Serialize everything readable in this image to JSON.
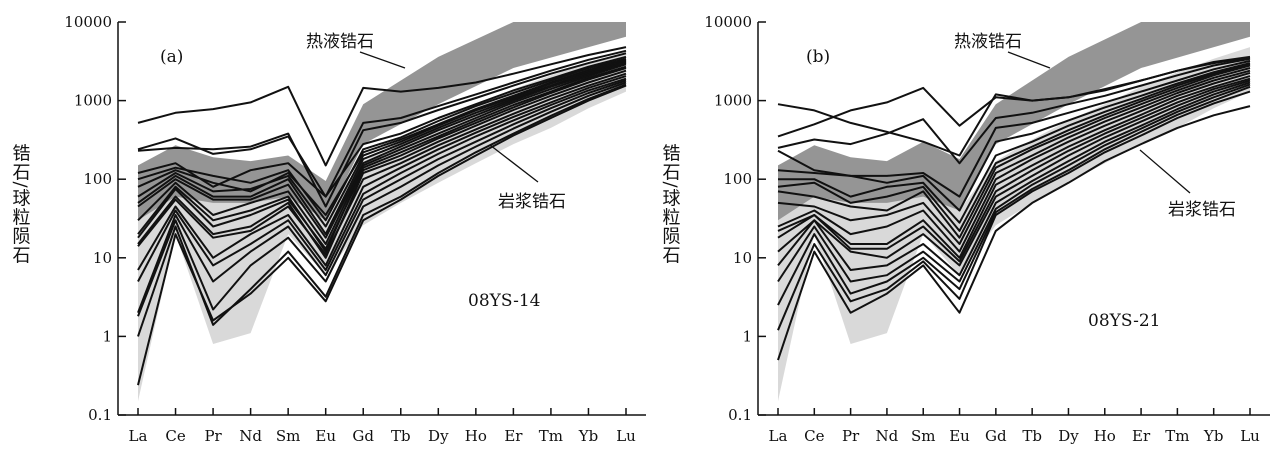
{
  "colors": {
    "hydrothermal_field": "#959595",
    "magmatic_field": "#d9d9d9",
    "line": "#111111"
  },
  "chart_data": [
    {
      "type": "line",
      "panel_label": "(a)",
      "sample": "08YS-14",
      "ylabel": "锆石/球粒陨石",
      "yscale": "log",
      "ylim": [
        0.1,
        10000
      ],
      "yticks": [
        "0.1",
        "1",
        "10",
        "100",
        "1000",
        "10000"
      ],
      "categories": [
        "La",
        "Ce",
        "Pr",
        "Nd",
        "Sm",
        "Eu",
        "Gd",
        "Tb",
        "Dy",
        "Ho",
        "Er",
        "Tm",
        "Yb",
        "Lu"
      ],
      "annotations": [
        {
          "text": "热液锆石"
        },
        {
          "text": "岩浆锆石"
        }
      ],
      "hydrothermal_field": {
        "upper": [
          {
            "i": 0,
            "v": 150
          },
          {
            "i": 1,
            "v": 270
          },
          {
            "i": 2,
            "v": 190
          },
          {
            "i": 3,
            "v": 170
          },
          {
            "i": 4,
            "v": 200
          },
          {
            "i": 5,
            "v": 95
          },
          {
            "i": 6,
            "v": 900
          },
          {
            "i": 8,
            "v": 3600
          },
          {
            "i": 10,
            "v": 10000
          },
          {
            "i": 13,
            "v": 10000
          }
        ],
        "lower": [
          {
            "i": 13,
            "v": 6500
          },
          {
            "i": 10,
            "v": 2600
          },
          {
            "i": 8,
            "v": 900
          },
          {
            "i": 6,
            "v": 280
          },
          {
            "i": 5,
            "v": 30
          },
          {
            "i": 4,
            "v": 60
          },
          {
            "i": 3,
            "v": 50
          },
          {
            "i": 2,
            "v": 50
          },
          {
            "i": 1,
            "v": 60
          },
          {
            "i": 0,
            "v": 30
          }
        ]
      },
      "magmatic_field": {
        "upper": [
          {
            "i": 0,
            "v": 40
          },
          {
            "i": 1,
            "v": 150
          },
          {
            "i": 2,
            "v": 90
          },
          {
            "i": 3,
            "v": 120
          },
          {
            "i": 4,
            "v": 160
          },
          {
            "i": 5,
            "v": 40
          },
          {
            "i": 6,
            "v": 170
          },
          {
            "i": 7,
            "v": 300
          },
          {
            "i": 8,
            "v": 520
          },
          {
            "i": 9,
            "v": 850
          },
          {
            "i": 10,
            "v": 1400
          },
          {
            "i": 11,
            "v": 2100
          },
          {
            "i": 12,
            "v": 3000
          },
          {
            "i": 13,
            "v": 4200
          }
        ],
        "lower": [
          {
            "i": 13,
            "v": 1300
          },
          {
            "i": 12,
            "v": 800
          },
          {
            "i": 11,
            "v": 450
          },
          {
            "i": 10,
            "v": 280
          },
          {
            "i": 9,
            "v": 160
          },
          {
            "i": 8,
            "v": 90
          },
          {
            "i": 7,
            "v": 50
          },
          {
            "i": 6,
            "v": 26
          },
          {
            "i": 5,
            "v": 6
          },
          {
            "i": 4,
            "v": 20
          },
          {
            "i": 3,
            "v": 1.1
          },
          {
            "i": 2,
            "v": 0.8
          },
          {
            "i": 1,
            "v": 20
          },
          {
            "i": 0,
            "v": 0.15
          }
        ]
      },
      "series": [
        {
          "values": [
            520,
            700,
            780,
            950,
            1500,
            150,
            1450,
            1300,
            1450,
            1700,
            2200,
            2900,
            3800,
            4800
          ]
        },
        {
          "values": [
            240,
            330,
            210,
            240,
            350,
            60,
            520,
            600,
            850,
            1200,
            1700,
            2400,
            3300,
            4300
          ]
        },
        {
          "values": [
            230,
            250,
            240,
            260,
            380,
            45,
            420,
            520,
            760,
            1080,
            1550,
            2200,
            3000,
            4000
          ]
        },
        {
          "values": [
            120,
            160,
            80,
            130,
            160,
            60,
            280,
            380,
            600,
            900,
            1350,
            1900,
            2700,
            3600
          ]
        },
        {
          "values": [
            100,
            140,
            110,
            90,
            130,
            30,
            240,
            340,
            550,
            850,
            1250,
            1800,
            2600,
            3400
          ]
        },
        {
          "values": [
            80,
            130,
            90,
            70,
            120,
            35,
            220,
            320,
            500,
            780,
            1150,
            1700,
            2450,
            3300
          ]
        },
        {
          "values": [
            60,
            120,
            70,
            75,
            110,
            25,
            200,
            300,
            480,
            750,
            1100,
            1650,
            2350,
            3200
          ]
        },
        {
          "values": [
            50,
            110,
            60,
            60,
            100,
            20,
            180,
            280,
            450,
            700,
            1050,
            1550,
            2250,
            3100
          ]
        },
        {
          "values": [
            45,
            100,
            55,
            55,
            85,
            18,
            160,
            260,
            420,
            650,
            1000,
            1500,
            2150,
            3000
          ]
        },
        {
          "values": [
            30,
            90,
            35,
            50,
            70,
            15,
            150,
            240,
            380,
            600,
            950,
            1400,
            2050,
            2900
          ]
        },
        {
          "values": [
            20,
            80,
            30,
            40,
            60,
            12,
            140,
            220,
            350,
            560,
            880,
            1300,
            1950,
            2700
          ]
        },
        {
          "values": [
            18,
            75,
            25,
            35,
            55,
            13,
            130,
            200,
            330,
            520,
            820,
            1250,
            1850,
            2600
          ]
        },
        {
          "values": [
            15,
            60,
            20,
            25,
            50,
            10,
            120,
            180,
            300,
            480,
            760,
            1150,
            1700,
            2400
          ]
        },
        {
          "values": [
            14,
            55,
            18,
            22,
            45,
            11,
            100,
            160,
            270,
            430,
            680,
            1050,
            1550,
            2200
          ]
        },
        {
          "values": [
            7,
            45,
            10,
            20,
            35,
            8,
            80,
            140,
            240,
            390,
            620,
            950,
            1450,
            2050
          ]
        },
        {
          "values": [
            5,
            40,
            8,
            15,
            30,
            7,
            65,
            120,
            210,
            350,
            560,
            880,
            1350,
            1900
          ]
        },
        {
          "values": [
            2,
            35,
            5,
            12,
            25,
            6,
            55,
            100,
            180,
            300,
            500,
            800,
            1250,
            1800
          ]
        },
        {
          "values": [
            1.8,
            30,
            2.2,
            8,
            18,
            5,
            45,
            80,
            150,
            260,
            440,
            720,
            1150,
            1700
          ]
        },
        {
          "values": [
            1.0,
            25,
            1.4,
            4,
            12,
            3.2,
            35,
            60,
            120,
            220,
            380,
            640,
            1050,
            1600
          ]
        },
        {
          "values": [
            0.24,
            20,
            1.6,
            3.5,
            10,
            2.8,
            30,
            55,
            110,
            200,
            360,
            600,
            1000,
            1550
          ]
        }
      ]
    },
    {
      "type": "line",
      "panel_label": "(b)",
      "sample": "08YS-21",
      "ylabel": "锆石/球粒陨石",
      "yscale": "log",
      "ylim": [
        0.1,
        10000
      ],
      "yticks": [
        "0.1",
        "1",
        "10",
        "100",
        "1000",
        "10000"
      ],
      "categories": [
        "La",
        "Ce",
        "Pr",
        "Nd",
        "Sm",
        "Eu",
        "Gd",
        "Tb",
        "Dy",
        "Ho",
        "Er",
        "Tm",
        "Yb",
        "Lu"
      ],
      "annotations": [
        {
          "text": "热液锆石"
        },
        {
          "text": "岩浆锆石"
        }
      ],
      "hydrothermal_field": {
        "upper": [
          {
            "i": 0,
            "v": 150
          },
          {
            "i": 1,
            "v": 270
          },
          {
            "i": 2,
            "v": 190
          },
          {
            "i": 3,
            "v": 170
          },
          {
            "i": 4,
            "v": 300
          },
          {
            "i": 5,
            "v": 180
          },
          {
            "i": 6,
            "v": 900
          },
          {
            "i": 8,
            "v": 3600
          },
          {
            "i": 10,
            "v": 10000
          },
          {
            "i": 13,
            "v": 10000
          }
        ],
        "lower": [
          {
            "i": 13,
            "v": 6500
          },
          {
            "i": 10,
            "v": 2600
          },
          {
            "i": 8,
            "v": 900
          },
          {
            "i": 6,
            "v": 280
          },
          {
            "i": 5,
            "v": 40
          },
          {
            "i": 4,
            "v": 60
          },
          {
            "i": 3,
            "v": 50
          },
          {
            "i": 2,
            "v": 50
          },
          {
            "i": 1,
            "v": 60
          },
          {
            "i": 0,
            "v": 30
          }
        ]
      },
      "magmatic_field": {
        "upper": [
          {
            "i": 0,
            "v": 40
          },
          {
            "i": 1,
            "v": 150
          },
          {
            "i": 2,
            "v": 90
          },
          {
            "i": 3,
            "v": 120
          },
          {
            "i": 4,
            "v": 160
          },
          {
            "i": 5,
            "v": 40
          },
          {
            "i": 6,
            "v": 170
          },
          {
            "i": 7,
            "v": 320
          },
          {
            "i": 8,
            "v": 560
          },
          {
            "i": 9,
            "v": 900
          },
          {
            "i": 10,
            "v": 1500
          },
          {
            "i": 11,
            "v": 2300
          },
          {
            "i": 12,
            "v": 3400
          },
          {
            "i": 13,
            "v": 4800
          }
        ],
        "lower": [
          {
            "i": 13,
            "v": 1300
          },
          {
            "i": 12,
            "v": 800
          },
          {
            "i": 11,
            "v": 450
          },
          {
            "i": 10,
            "v": 280
          },
          {
            "i": 9,
            "v": 160
          },
          {
            "i": 8,
            "v": 90
          },
          {
            "i": 7,
            "v": 50
          },
          {
            "i": 6,
            "v": 26
          },
          {
            "i": 5,
            "v": 6
          },
          {
            "i": 4,
            "v": 20
          },
          {
            "i": 3,
            "v": 1.1
          },
          {
            "i": 2,
            "v": 0.8
          },
          {
            "i": 1,
            "v": 20
          },
          {
            "i": 0,
            "v": 0.15
          }
        ]
      },
      "series": [
        {
          "values": [
            900,
            750,
            520,
            400,
            300,
            200,
            1200,
            1000,
            1100,
            1400,
            1800,
            2400,
            3100,
            3600
          ]
        },
        {
          "values": [
            350,
            500,
            750,
            950,
            1450,
            480,
            1100,
            1000,
            1100,
            1350,
            1800,
            2400,
            3000,
            3500
          ]
        },
        {
          "values": [
            250,
            320,
            280,
            380,
            580,
            160,
            600,
            700,
            900,
            1150,
            1550,
            2100,
            2800,
            3400
          ]
        },
        {
          "values": [
            230,
            130,
            110,
            110,
            120,
            60,
            450,
            520,
            700,
            950,
            1300,
            1800,
            2500,
            3200
          ]
        },
        {
          "values": [
            130,
            120,
            110,
            90,
            110,
            40,
            300,
            380,
            560,
            820,
            1150,
            1650,
            2300,
            3000
          ]
        },
        {
          "values": [
            100,
            100,
            60,
            80,
            90,
            28,
            200,
            300,
            480,
            720,
            1050,
            1550,
            2200,
            2900
          ]
        },
        {
          "values": [
            80,
            90,
            50,
            60,
            80,
            22,
            160,
            260,
            420,
            650,
            980,
            1450,
            2100,
            2800
          ]
        },
        {
          "values": [
            70,
            60,
            45,
            40,
            70,
            18,
            140,
            240,
            380,
            600,
            900,
            1350,
            1950,
            2600
          ]
        },
        {
          "values": [
            50,
            45,
            30,
            35,
            50,
            15,
            120,
            200,
            340,
            540,
            820,
            1250,
            1800,
            2400
          ]
        },
        {
          "values": [
            25,
            40,
            20,
            25,
            40,
            12,
            100,
            180,
            300,
            480,
            740,
            1150,
            1650,
            2250
          ]
        },
        {
          "values": [
            22,
            35,
            15,
            15,
            30,
            10,
            85,
            150,
            260,
            420,
            660,
            1050,
            1500,
            2050
          ]
        },
        {
          "values": [
            18,
            35,
            13,
            13,
            25,
            9,
            70,
            130,
            230,
            380,
            600,
            950,
            1400,
            1900
          ]
        },
        {
          "values": [
            12,
            30,
            12,
            10,
            20,
            8,
            60,
            110,
            200,
            340,
            540,
            860,
            1300,
            1800
          ]
        },
        {
          "values": [
            8,
            30,
            7,
            8,
            15,
            6,
            50,
            95,
            170,
            300,
            480,
            780,
            1200,
            1700
          ]
        },
        {
          "values": [
            5,
            25,
            5,
            6,
            12,
            5,
            42,
            85,
            150,
            270,
            440,
            720,
            1100,
            1600
          ]
        },
        {
          "values": [
            2.5,
            20,
            3.5,
            5,
            10,
            4,
            38,
            75,
            130,
            240,
            400,
            660,
            1000,
            1500
          ]
        },
        {
          "values": [
            1.2,
            15,
            2.8,
            4,
            9,
            3,
            35,
            70,
            120,
            220,
            360,
            600,
            920,
            1300
          ]
        },
        {
          "values": [
            0.5,
            12,
            2.0,
            3.5,
            8,
            2.0,
            22,
            50,
            90,
            170,
            280,
            450,
            650,
            850
          ]
        }
      ]
    }
  ]
}
